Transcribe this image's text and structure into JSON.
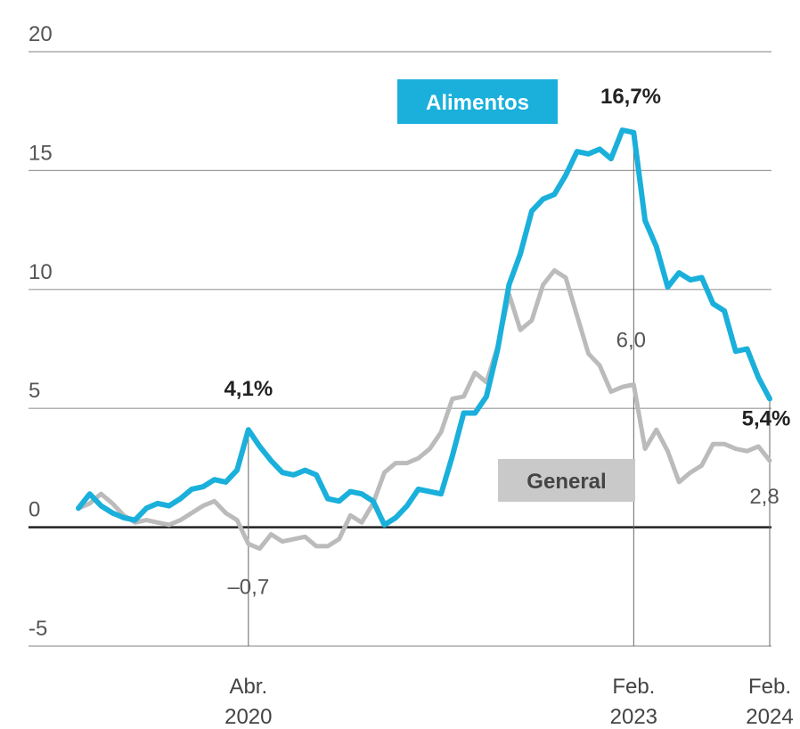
{
  "chart_data": {
    "type": "line",
    "title": "",
    "xlabel": "",
    "ylabel": "",
    "ylim": [
      -5,
      20
    ],
    "yticks": [
      20,
      15,
      10,
      5,
      0,
      -5
    ],
    "ytick_labels": [
      "20",
      "15",
      "10",
      "5",
      "0",
      "-5"
    ],
    "x_ticks": [
      {
        "x": "2020-04",
        "line1": "Abr.",
        "line2": "2020"
      },
      {
        "x": "2023-02",
        "line1": "Feb.",
        "line2": "2023"
      },
      {
        "x": "2024-02",
        "line1": "Feb.",
        "line2": "2024"
      }
    ],
    "x": [
      "2019-01",
      "2019-02",
      "2019-03",
      "2019-04",
      "2019-05",
      "2019-06",
      "2019-07",
      "2019-08",
      "2019-09",
      "2019-10",
      "2019-11",
      "2019-12",
      "2020-01",
      "2020-02",
      "2020-03",
      "2020-04",
      "2020-05",
      "2020-06",
      "2020-07",
      "2020-08",
      "2020-09",
      "2020-10",
      "2020-11",
      "2020-12",
      "2021-01",
      "2021-02",
      "2021-03",
      "2021-04",
      "2021-05",
      "2021-06",
      "2021-07",
      "2021-08",
      "2021-09",
      "2021-10",
      "2021-11",
      "2021-12",
      "2022-01",
      "2022-02",
      "2022-03",
      "2022-04",
      "2022-05",
      "2022-06",
      "2022-07",
      "2022-08",
      "2022-09",
      "2022-10",
      "2022-11",
      "2022-12",
      "2023-01",
      "2023-02",
      "2023-03",
      "2023-04",
      "2023-05",
      "2023-06",
      "2023-07",
      "2023-08",
      "2023-09",
      "2023-10",
      "2023-11",
      "2023-12",
      "2024-01",
      "2024-02"
    ],
    "series": [
      {
        "name": "Alimentos",
        "color": "#1ab0db",
        "values": [
          0.8,
          1.4,
          0.9,
          0.6,
          0.4,
          0.3,
          0.8,
          1.0,
          0.9,
          1.2,
          1.6,
          1.7,
          2.0,
          1.9,
          2.4,
          4.1,
          3.4,
          2.8,
          2.3,
          2.2,
          2.4,
          2.2,
          1.2,
          1.1,
          1.5,
          1.4,
          1.1,
          0.1,
          0.4,
          0.9,
          1.6,
          1.5,
          1.4,
          3.0,
          4.8,
          4.8,
          5.5,
          7.5,
          10.2,
          11.5,
          13.3,
          13.8,
          14.0,
          14.8,
          15.8,
          15.7,
          15.9,
          15.5,
          16.7,
          16.6,
          12.9,
          11.8,
          10.1,
          10.7,
          10.4,
          10.5,
          9.4,
          9.1,
          7.4,
          7.5,
          6.3,
          5.4
        ]
      },
      {
        "name": "General",
        "color": "#bbbbbb",
        "values": [
          0.8,
          1.0,
          1.4,
          1.0,
          0.5,
          0.2,
          0.3,
          0.2,
          0.1,
          0.3,
          0.6,
          0.9,
          1.1,
          0.6,
          0.3,
          -0.7,
          -0.9,
          -0.3,
          -0.6,
          -0.5,
          -0.4,
          -0.8,
          -0.8,
          -0.5,
          0.5,
          0.2,
          1.0,
          2.3,
          2.7,
          2.7,
          2.9,
          3.3,
          4.0,
          5.4,
          5.5,
          6.5,
          6.1,
          7.6,
          9.8,
          8.3,
          8.7,
          10.2,
          10.8,
          10.5,
          8.9,
          7.3,
          6.8,
          5.7,
          5.9,
          6.0,
          3.3,
          4.1,
          3.2,
          1.9,
          2.3,
          2.6,
          3.5,
          3.5,
          3.3,
          3.2,
          3.4,
          2.8
        ]
      }
    ],
    "annotations": [
      {
        "text": "4,1%",
        "x": "2020-04",
        "y": 4.1,
        "style": "bold"
      },
      {
        "text": "16,7%",
        "x": "2023-01",
        "y": 16.7,
        "style": "bold"
      },
      {
        "text": "5,4%",
        "x": "2024-02",
        "y": 5.4,
        "style": "bold"
      },
      {
        "text": "–0,7",
        "x": "2020-04",
        "y": -0.7,
        "style": "light"
      },
      {
        "text": "6,0",
        "x": "2023-02",
        "y": 6.0,
        "style": "light"
      },
      {
        "text": "2,8",
        "x": "2024-02",
        "y": 2.8,
        "style": "light"
      }
    ],
    "legend": [
      {
        "label": "Alimentos",
        "bg": "#1ab0db",
        "fg": "#ffffff"
      },
      {
        "label": "General",
        "bg": "#c9c9c9",
        "fg": "#444444"
      }
    ],
    "grid": true
  }
}
